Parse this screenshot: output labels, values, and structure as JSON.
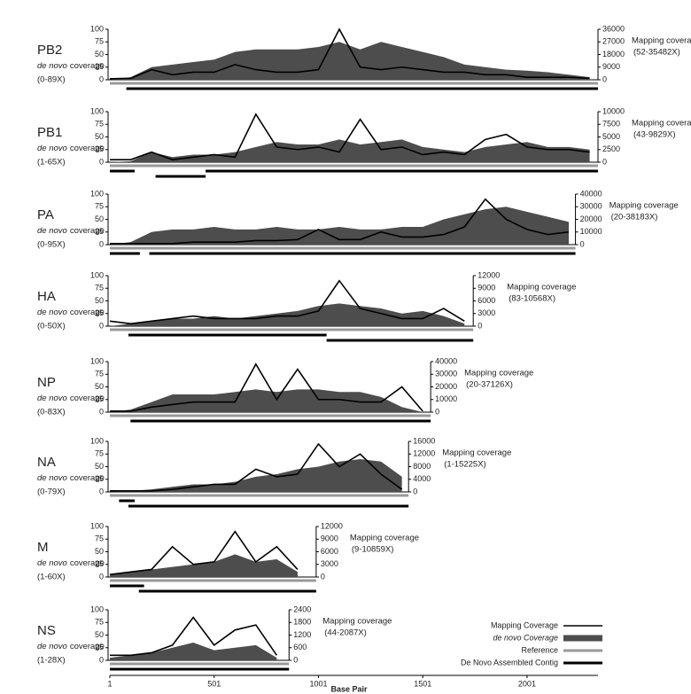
{
  "chart_data": [
    {
      "type": "line",
      "title": "PB2",
      "subtitle_italic": "de novo",
      "subtitle": "coverage",
      "ylabel_range": "(0-89X)",
      "y2label": "Mapping coverage",
      "y2label_range": "(52-35482X)",
      "xlim": [
        1,
        2341
      ],
      "ylim": [
        0,
        100
      ],
      "yticks": [
        0,
        25,
        50,
        75,
        100
      ],
      "y2lim": [
        0,
        36000
      ],
      "y2ticks": [
        0,
        9000,
        18000,
        27000,
        36000
      ],
      "x": [
        1,
        101,
        201,
        301,
        401,
        501,
        601,
        701,
        801,
        901,
        1001,
        1101,
        1201,
        1301,
        1401,
        1501,
        1601,
        1701,
        1801,
        1901,
        2001,
        2101,
        2201,
        2301
      ],
      "series": [
        {
          "style": "line",
          "color": "#000000",
          "axis": "y2",
          "values": [
            720,
            1080,
            7200,
            3600,
            5400,
            5400,
            10800,
            7200,
            5400,
            5400,
            7200,
            36000,
            9000,
            7200,
            9000,
            7200,
            5400,
            5400,
            3600,
            3600,
            1800,
            1800,
            1800,
            1080
          ]
        },
        {
          "style": "area",
          "color": "#4d4d4d",
          "values": [
            0,
            5,
            25,
            30,
            35,
            40,
            55,
            60,
            60,
            60,
            65,
            75,
            60,
            75,
            65,
            55,
            45,
            30,
            25,
            20,
            18,
            15,
            10,
            5
          ]
        }
      ],
      "reference": [
        1,
        2341
      ],
      "contigs": [
        [
          [
            80,
            2341
          ]
        ]
      ]
    },
    {
      "type": "line",
      "title": "PB1",
      "subtitle_italic": "de novo",
      "subtitle": "coverage",
      "ylabel_range": "(1-65X)",
      "y2label": "Mapping coverage",
      "y2label_range": "(43-9829X)",
      "xlim": [
        1,
        2341
      ],
      "ylim": [
        0,
        100
      ],
      "yticks": [
        0,
        25,
        50,
        75,
        100
      ],
      "y2lim": [
        0,
        10000
      ],
      "y2ticks": [
        0,
        2500,
        5000,
        7500,
        10000
      ],
      "x": [
        1,
        101,
        201,
        301,
        401,
        501,
        601,
        701,
        801,
        901,
        1001,
        1101,
        1201,
        1301,
        1401,
        1501,
        1601,
        1701,
        1801,
        1901,
        2001,
        2101,
        2201,
        2301
      ],
      "series": [
        {
          "style": "line",
          "color": "#000000",
          "axis": "y2",
          "values": [
            500,
            500,
            2000,
            500,
            1000,
            1500,
            1000,
            9500,
            3000,
            2500,
            3000,
            2000,
            8500,
            2500,
            3000,
            1500,
            2000,
            1500,
            4500,
            5500,
            3000,
            2500,
            2500,
            2000
          ]
        },
        {
          "style": "area",
          "color": "#4d4d4d",
          "values": [
            0,
            2,
            20,
            10,
            15,
            15,
            20,
            30,
            40,
            35,
            35,
            45,
            35,
            40,
            45,
            30,
            25,
            20,
            30,
            35,
            40,
            30,
            30,
            25
          ]
        }
      ],
      "reference": [
        1,
        2341
      ],
      "contigs": [
        [
          [
            1,
            120
          ],
          [
            460,
            2341
          ]
        ],
        [
          [
            220,
            460
          ]
        ]
      ]
    },
    {
      "type": "line",
      "title": "PA",
      "subtitle_italic": "de novo",
      "subtitle": "coverage",
      "ylabel_range": "(0-95X)",
      "y2label": "Mapping coverage",
      "y2label_range": "(20-38183X)",
      "xlim": [
        1,
        2233
      ],
      "ylim": [
        0,
        100
      ],
      "yticks": [
        0,
        25,
        50,
        75,
        100
      ],
      "y2lim": [
        0,
        40000
      ],
      "y2ticks": [
        0,
        10000,
        20000,
        30000,
        40000
      ],
      "x": [
        1,
        101,
        201,
        301,
        401,
        501,
        601,
        701,
        801,
        901,
        1001,
        1101,
        1201,
        1301,
        1401,
        1501,
        1601,
        1701,
        1801,
        1901,
        2001,
        2101,
        2201
      ],
      "series": [
        {
          "style": "line",
          "color": "#000000",
          "axis": "y2",
          "values": [
            800,
            800,
            800,
            800,
            2000,
            2000,
            2000,
            3200,
            3200,
            4000,
            12000,
            4000,
            4000,
            10000,
            6000,
            6000,
            8000,
            14000,
            36000,
            20000,
            12000,
            8000,
            10000
          ]
        },
        {
          "style": "area",
          "color": "#4d4d4d",
          "values": [
            0,
            5,
            25,
            30,
            30,
            35,
            30,
            30,
            35,
            30,
            30,
            35,
            30,
            30,
            35,
            35,
            50,
            60,
            70,
            75,
            65,
            55,
            45
          ]
        }
      ],
      "reference": [
        1,
        2233
      ],
      "contigs": [
        [
          [
            1,
            145
          ],
          [
            190,
            2233
          ]
        ]
      ]
    },
    {
      "type": "line",
      "title": "HA",
      "subtitle_italic": "de novo",
      "subtitle": "coverage",
      "ylabel_range": "(0-50X)",
      "y2label": "Mapping coverage",
      "y2label_range": "(83-10568X)",
      "xlim": [
        1,
        1743
      ],
      "ylim": [
        0,
        100
      ],
      "yticks": [
        0,
        25,
        50,
        75,
        100
      ],
      "y2lim": [
        0,
        12000
      ],
      "y2ticks": [
        0,
        3000,
        6000,
        9000,
        12000
      ],
      "x": [
        1,
        101,
        201,
        301,
        401,
        501,
        601,
        701,
        801,
        901,
        1001,
        1101,
        1201,
        1301,
        1401,
        1501,
        1601,
        1701
      ],
      "series": [
        {
          "style": "line",
          "color": "#000000",
          "axis": "y2",
          "values": [
            1200,
            600,
            1200,
            1800,
            2400,
            1800,
            1800,
            1800,
            2400,
            2400,
            3600,
            10800,
            4200,
            3000,
            1800,
            1800,
            4200,
            1200
          ]
        },
        {
          "style": "area",
          "color": "#4d4d4d",
          "values": [
            0,
            5,
            10,
            15,
            15,
            20,
            15,
            20,
            25,
            30,
            40,
            45,
            40,
            35,
            25,
            30,
            20,
            5
          ]
        }
      ],
      "reference": [
        1,
        1743
      ],
      "contigs": [
        [
          [
            90,
            1040
          ]
        ],
        [
          [
            1040,
            1743
          ]
        ]
      ]
    },
    {
      "type": "line",
      "title": "NP",
      "subtitle_italic": "de novo",
      "subtitle": "coverage",
      "ylabel_range": "(0-83X)",
      "y2label": "Mapping coverage",
      "y2label_range": "(20-37126X)",
      "xlim": [
        1,
        1539
      ],
      "ylim": [
        0,
        100
      ],
      "yticks": [
        0,
        25,
        50,
        75,
        100
      ],
      "y2lim": [
        0,
        40000
      ],
      "y2ticks": [
        0,
        10000,
        20000,
        30000,
        40000
      ],
      "x": [
        1,
        101,
        201,
        301,
        401,
        501,
        601,
        701,
        801,
        901,
        1001,
        1101,
        1201,
        1301,
        1401,
        1501
      ],
      "series": [
        {
          "style": "line",
          "color": "#000000",
          "axis": "y2",
          "values": [
            800,
            800,
            4000,
            6000,
            8000,
            8000,
            8000,
            38000,
            10000,
            34000,
            10000,
            10000,
            8000,
            8000,
            20000,
            800
          ]
        },
        {
          "style": "area",
          "color": "#4d4d4d",
          "values": [
            0,
            5,
            20,
            35,
            35,
            35,
            40,
            45,
            40,
            45,
            45,
            40,
            40,
            30,
            10,
            0
          ]
        }
      ],
      "reference": [
        1,
        1539
      ],
      "contigs": [
        [
          [
            100,
            1539
          ]
        ]
      ]
    },
    {
      "type": "line",
      "title": "NA",
      "subtitle_italic": "de novo",
      "subtitle": "coverage",
      "ylabel_range": "(0-79X)",
      "y2label": "Mapping coverage",
      "y2label_range": "(1-15225X)",
      "xlim": [
        1,
        1433
      ],
      "ylim": [
        0,
        100
      ],
      "yticks": [
        0,
        25,
        50,
        75,
        100
      ],
      "y2lim": [
        0,
        16000
      ],
      "y2ticks": [
        0,
        4000,
        8000,
        12000,
        16000
      ],
      "x": [
        1,
        101,
        201,
        301,
        401,
        501,
        601,
        701,
        801,
        901,
        1001,
        1101,
        1201,
        1301,
        1401
      ],
      "series": [
        {
          "style": "line",
          "color": "#000000",
          "axis": "y2",
          "values": [
            320,
            320,
            320,
            800,
            1600,
            2400,
            2400,
            7200,
            4800,
            5600,
            15200,
            8000,
            12000,
            5600,
            800
          ]
        },
        {
          "style": "area",
          "color": "#4d4d4d",
          "values": [
            0,
            2,
            5,
            10,
            15,
            15,
            20,
            30,
            35,
            45,
            50,
            60,
            65,
            60,
            30
          ]
        }
      ],
      "reference": [
        1,
        1433
      ],
      "contigs": [
        [
          [
            45,
            120
          ]
        ],
        [
          [
            90,
            1433
          ]
        ]
      ]
    },
    {
      "type": "line",
      "title": "M",
      "subtitle_italic": "de novo",
      "subtitle": "coverage",
      "ylabel_range": "(1-60X)",
      "y2label": "Mapping coverage",
      "y2label_range": "(9-10859X)",
      "xlim": [
        1,
        990
      ],
      "ylim": [
        0,
        100
      ],
      "yticks": [
        0,
        25,
        50,
        75,
        100
      ],
      "y2lim": [
        0,
        12000
      ],
      "y2ticks": [
        0,
        3000,
        6000,
        9000,
        12000
      ],
      "x": [
        1,
        101,
        201,
        301,
        401,
        501,
        601,
        701,
        801,
        901
      ],
      "series": [
        {
          "style": "line",
          "color": "#000000",
          "axis": "y2",
          "values": [
            600,
            1200,
            1800,
            7200,
            3000,
            3600,
            10800,
            3600,
            7200,
            1800
          ]
        },
        {
          "style": "area",
          "color": "#4d4d4d",
          "values": [
            5,
            10,
            15,
            20,
            25,
            30,
            45,
            30,
            35,
            10
          ]
        }
      ],
      "reference": [
        1,
        990
      ],
      "contigs": [
        [
          [
            1,
            165
          ]
        ],
        [
          [
            140,
            990
          ]
        ]
      ]
    },
    {
      "type": "line",
      "title": "NS",
      "subtitle_italic": "de novo",
      "subtitle": "coverage",
      "ylabel_range": "(1-28X)",
      "y2label": "Mapping coverage",
      "y2label_range": "(44-2087X)",
      "xlim": [
        1,
        860
      ],
      "ylim": [
        0,
        100
      ],
      "yticks": [
        0,
        25,
        50,
        75,
        100
      ],
      "y2lim": [
        0,
        2400
      ],
      "y2ticks": [
        0,
        600,
        1200,
        1800,
        2400
      ],
      "x": [
        1,
        101,
        201,
        301,
        401,
        501,
        601,
        701,
        801
      ],
      "series": [
        {
          "style": "line",
          "color": "#000000",
          "axis": "y2",
          "values": [
            240,
            240,
            360,
            720,
            2040,
            720,
            1440,
            1680,
            240
          ]
        },
        {
          "style": "area",
          "color": "#4d4d4d",
          "values": [
            5,
            10,
            15,
            25,
            35,
            20,
            25,
            30,
            5
          ]
        }
      ],
      "reference": [
        1,
        860
      ],
      "contigs": [
        [
          [
            1,
            860
          ]
        ]
      ]
    }
  ],
  "xaxis": {
    "label": "Base Pair",
    "xlim": [
      1,
      2341
    ],
    "xticks": [
      1,
      501,
      1001,
      1501,
      2001
    ]
  },
  "legend": [
    {
      "name": "Mapping Coverage",
      "style": "line",
      "color": "#000000"
    },
    {
      "name": "de novo Coverage",
      "style": "area",
      "color": "#4d4d4d"
    },
    {
      "name": "Reference",
      "style": "reference",
      "color": "#999999"
    },
    {
      "name": "De Novo Assembled Contig",
      "style": "contig",
      "color": "#000000"
    }
  ]
}
